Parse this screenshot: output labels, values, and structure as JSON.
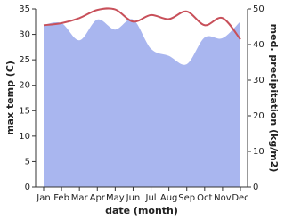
{
  "chart_data": {
    "type": "line",
    "categories": [
      "Jan",
      "Feb",
      "Mar",
      "Apr",
      "May",
      "Jun",
      "Jul",
      "Aug",
      "Sep",
      "Oct",
      "Nov",
      "Dec"
    ],
    "x_label": "date (month)",
    "y_label": "max temp (C)",
    "y2_label": "med. precipitation (kg/m2)",
    "ylim": [
      0,
      35
    ],
    "yticks": [
      0,
      5,
      10,
      15,
      20,
      25,
      30,
      35
    ],
    "y2lim": [
      0,
      50
    ],
    "y2ticks": [
      0,
      10,
      20,
      30,
      40,
      50
    ],
    "series": [
      {
        "name": "max temp",
        "color": "#c8505a",
        "values": [
          31.8,
          32.2,
          33.2,
          34.8,
          34.9,
          32.5,
          33.8,
          33.0,
          34.5,
          31.8,
          33.2,
          29.0
        ]
      },
      {
        "name": "med. precipitation",
        "color": "#a9b6ef",
        "axis": "y2",
        "kind": "area",
        "values": [
          45.5,
          46.0,
          41.2,
          47.0,
          44.2,
          47.0,
          38.8,
          36.8,
          34.5,
          42.0,
          41.8,
          46.5
        ]
      }
    ]
  }
}
